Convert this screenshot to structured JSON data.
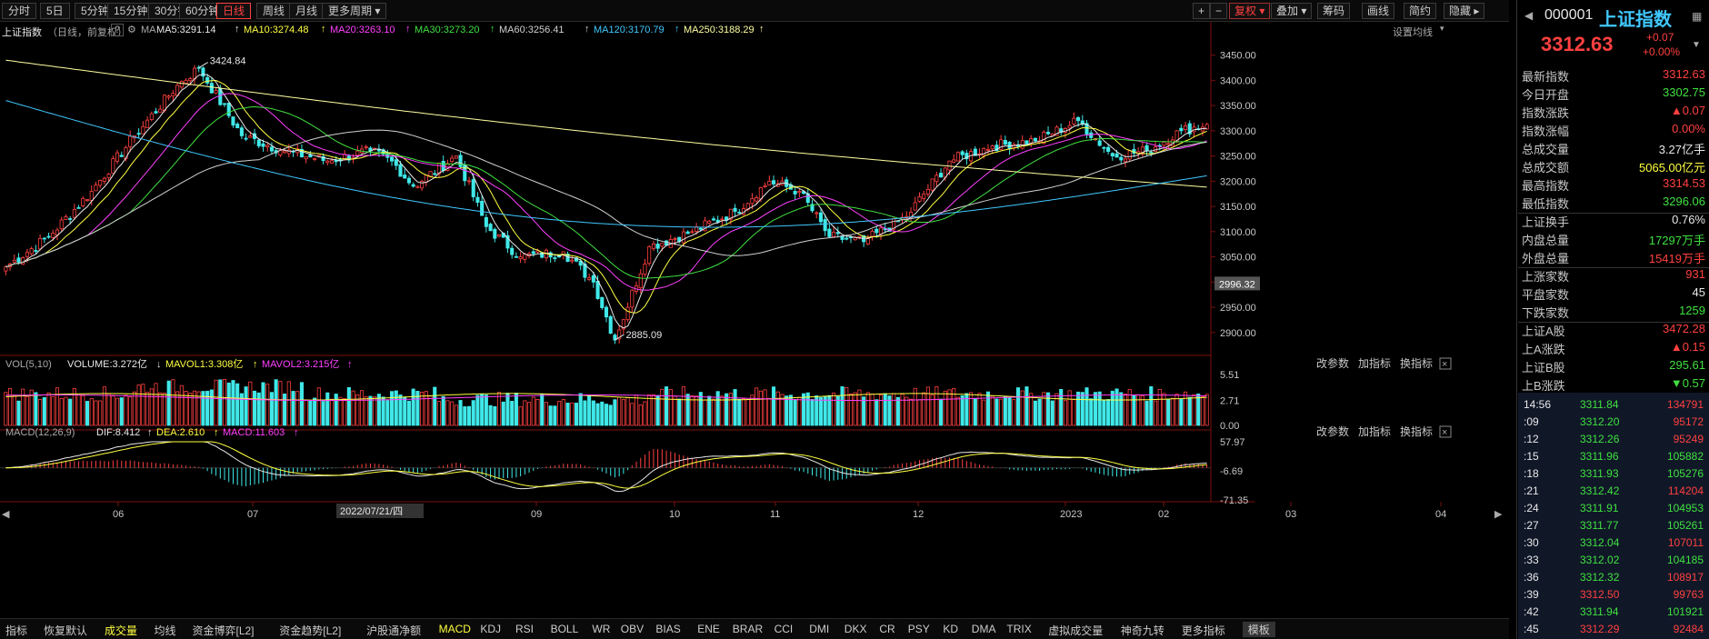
{
  "toolbar": {
    "period_tabs": [
      "分时",
      "5日",
      "5分钟",
      "15分钟",
      "30分钟",
      "60分钟",
      "日线",
      "周线",
      "月线",
      "更多周期"
    ],
    "active_period": "日线",
    "right_buttons": [
      "+",
      "−",
      "复权",
      "叠加",
      "筹码",
      "画线",
      "简约",
      "隐藏"
    ]
  },
  "chart_info": {
    "name": "上证指数",
    "mode": "（日线，前复权）",
    "help": "?",
    "ma_label": "MA",
    "ma5": "MA5:3291.14",
    "ma10": "MA10:3274.48",
    "ma20": "MA20:3263.10",
    "ma30": "MA30:3273.20",
    "ma60": "MA60:3256.41",
    "ma120": "MA120:3170.79",
    "ma250": "MA250:3188.29",
    "settings": "设置均线"
  },
  "price_axis": [
    "3450.00",
    "3400.00",
    "3350.00",
    "3300.00",
    "3250.00",
    "3200.00",
    "3150.00",
    "3100.00",
    "3050.00",
    "3000.00",
    "2950.00",
    "2900.00"
  ],
  "cursor_price": "2996.32",
  "high_label": "3424.84",
  "low_label": "2885.09",
  "vol_info": {
    "label": "VOL(5,10)",
    "volume": "VOLUME:3.272亿",
    "mavol1": "MAVOL1:3.308亿",
    "mavol2": "MAVOL2:3.215亿",
    "axis": [
      "5.51",
      "2.71",
      "0.00"
    ]
  },
  "macd_info": {
    "label": "MACD(12,26,9)",
    "dif": "DIF:8.412",
    "dea": "DEA:2.610",
    "macd": "MACD:11.603",
    "axis": [
      "57.97",
      "-6.69",
      "-71.35"
    ]
  },
  "panel_actions": [
    "改参数",
    "加指标",
    "换指标"
  ],
  "x_axis": [
    "06",
    "07",
    "2022/07/21/四",
    "09",
    "10",
    "11",
    "12",
    "2023",
    "02",
    "03",
    "04"
  ],
  "bottom_tabs": [
    "指标",
    "恢复默认",
    "成交量",
    "均线",
    "资金博弈[L2]",
    "资金趋势[L2]",
    "沪股通净额",
    "MACD",
    "KDJ",
    "RSI",
    "BOLL",
    "WR",
    "OBV",
    "BIAS",
    "ENE",
    "BRAR",
    "CCI",
    "DMI",
    "DKX",
    "CR",
    "PSY",
    "KD",
    "DMA",
    "TRIX",
    "虚拟成交量",
    "神奇九转",
    "更多指标",
    "模板"
  ],
  "quote": {
    "code": "000001",
    "name": "上证指数",
    "price": "3312.63",
    "change": "+0.07",
    "pct": "+0.00%",
    "rows": [
      {
        "label": "最新指数",
        "value": "3312.63",
        "color": "#ff4040"
      },
      {
        "label": "今日开盘",
        "value": "3302.75",
        "color": "#40e040"
      },
      {
        "label": "指数涨跌",
        "value": "▲0.07",
        "color": "#ff4040"
      },
      {
        "label": "指数涨幅",
        "value": "0.00%",
        "color": "#ff4040"
      },
      {
        "label": "总成交量",
        "value": "3.27亿手",
        "color": "#e8e8e8"
      },
      {
        "label": "总成交额",
        "value": "5065.00亿元",
        "color": "#ffff40"
      },
      {
        "label": "最高指数",
        "value": "3314.53",
        "color": "#ff4040"
      },
      {
        "label": "最低指数",
        "value": "3296.06",
        "color": "#40e040"
      },
      {
        "label": "上证换手",
        "value": "0.76%",
        "color": "#e8e8e8"
      },
      {
        "label": "内盘总量",
        "value": "17297万手",
        "color": "#40e040"
      },
      {
        "label": "外盘总量",
        "value": "15419万手",
        "color": "#ff4040"
      },
      {
        "label": "上涨家数",
        "value": "931",
        "color": "#ff4040"
      },
      {
        "label": "平盘家数",
        "value": "45",
        "color": "#e8e8e8"
      },
      {
        "label": "下跌家数",
        "value": "1259",
        "color": "#40e040"
      },
      {
        "label": "上证A股",
        "value": "3472.28",
        "color": "#ff4040"
      },
      {
        "label": "上A涨跌",
        "value": "▲0.15",
        "color": "#ff4040"
      },
      {
        "label": "上证B股",
        "value": "295.61",
        "color": "#40e040"
      },
      {
        "label": "上B涨跌",
        "value": "▼0.57",
        "color": "#40e040"
      }
    ],
    "ticks": [
      {
        "time": "14:56",
        "price": "3311.84",
        "vol": "134791",
        "pc": "#40e040",
        "vc": "#ff4040"
      },
      {
        "time": ":09",
        "price": "3312.20",
        "vol": "95172",
        "pc": "#40e040",
        "vc": "#ff4040"
      },
      {
        "time": ":12",
        "price": "3312.26",
        "vol": "95249",
        "pc": "#40e040",
        "vc": "#ff4040"
      },
      {
        "time": ":15",
        "price": "3311.96",
        "vol": "105882",
        "pc": "#40e040",
        "vc": "#40e040"
      },
      {
        "time": ":18",
        "price": "3311.93",
        "vol": "105276",
        "pc": "#40e040",
        "vc": "#40e040"
      },
      {
        "time": ":21",
        "price": "3312.42",
        "vol": "114204",
        "pc": "#40e040",
        "vc": "#ff4040"
      },
      {
        "time": ":24",
        "price": "3311.91",
        "vol": "104953",
        "pc": "#40e040",
        "vc": "#40e040"
      },
      {
        "time": ":27",
        "price": "3311.77",
        "vol": "105261",
        "pc": "#40e040",
        "vc": "#40e040"
      },
      {
        "time": ":30",
        "price": "3312.04",
        "vol": "107011",
        "pc": "#40e040",
        "vc": "#ff4040"
      },
      {
        "time": ":33",
        "price": "3312.02",
        "vol": "104185",
        "pc": "#40e040",
        "vc": "#40e040"
      },
      {
        "time": ":36",
        "price": "3312.32",
        "vol": "108917",
        "pc": "#40e040",
        "vc": "#ff4040"
      },
      {
        "time": ":39",
        "price": "3312.50",
        "vol": "99763",
        "pc": "#ff4040",
        "vc": "#ff4040"
      },
      {
        "time": ":42",
        "price": "3311.94",
        "vol": "101921",
        "pc": "#40e040",
        "vc": "#40e040"
      },
      {
        "time": ":45",
        "price": "3312.29",
        "vol": "92484",
        "pc": "#ff4040",
        "vc": "#ff4040"
      }
    ]
  },
  "chart_data": {
    "type": "candlestick",
    "price_ylim": [
      2860,
      3480
    ],
    "key_points": [
      {
        "idx": 0,
        "close": 3030
      },
      {
        "idx": 10,
        "close": 3090
      },
      {
        "idx": 20,
        "close": 3180
      },
      {
        "idx": 30,
        "close": 3290
      },
      {
        "idx": 40,
        "close": 3390
      },
      {
        "idx": 45,
        "close": 3424.84
      },
      {
        "idx": 55,
        "close": 3290
      },
      {
        "idx": 65,
        "close": 3260
      },
      {
        "idx": 75,
        "close": 3240
      },
      {
        "idx": 85,
        "close": 3260
      },
      {
        "idx": 90,
        "close": 3240
      },
      {
        "idx": 95,
        "close": 3190
      },
      {
        "idx": 105,
        "close": 3250
      },
      {
        "idx": 112,
        "close": 3110
      },
      {
        "idx": 120,
        "close": 3050
      },
      {
        "idx": 130,
        "close": 3060
      },
      {
        "idx": 137,
        "close": 3000
      },
      {
        "idx": 142,
        "close": 2885.09
      },
      {
        "idx": 150,
        "close": 3070
      },
      {
        "idx": 160,
        "close": 3100
      },
      {
        "idx": 170,
        "close": 3140
      },
      {
        "idx": 178,
        "close": 3200
      },
      {
        "idx": 185,
        "close": 3180
      },
      {
        "idx": 192,
        "close": 3090
      },
      {
        "idx": 200,
        "close": 3080
      },
      {
        "idx": 210,
        "close": 3130
      },
      {
        "idx": 220,
        "close": 3240
      },
      {
        "idx": 230,
        "close": 3270
      },
      {
        "idx": 240,
        "close": 3280
      },
      {
        "idx": 250,
        "close": 3320
      },
      {
        "idx": 258,
        "close": 3250
      },
      {
        "idx": 266,
        "close": 3260
      },
      {
        "idx": 274,
        "close": 3300
      },
      {
        "idx": 280,
        "close": 3312.63
      }
    ],
    "ma250_endpoints": [
      3440,
      3188.29
    ],
    "ma120_endpoints": [
      3360,
      3170.79
    ],
    "volume_ylim": [
      0,
      5.51
    ],
    "macd_ylim": [
      -71.35,
      57.97
    ]
  }
}
